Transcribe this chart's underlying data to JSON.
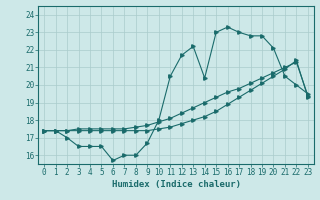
{
  "xlabel": "Humidex (Indice chaleur)",
  "ylabel": "",
  "bg_color": "#cde8e8",
  "line_color": "#1a6b6b",
  "grid_color": "#aacccc",
  "xlim": [
    -0.5,
    23.5
  ],
  "ylim": [
    15.5,
    24.5
  ],
  "yticks": [
    16,
    17,
    18,
    19,
    20,
    21,
    22,
    23,
    24
  ],
  "xticks": [
    0,
    1,
    2,
    3,
    4,
    5,
    6,
    7,
    8,
    9,
    10,
    11,
    12,
    13,
    14,
    15,
    16,
    17,
    18,
    19,
    20,
    21,
    22,
    23
  ],
  "line1_x": [
    0,
    1,
    2,
    3,
    4,
    5,
    6,
    7,
    8,
    9,
    10,
    11,
    12,
    13,
    14,
    15,
    16,
    17,
    18,
    19,
    20,
    21,
    22,
    23
  ],
  "line1_y": [
    17.4,
    17.4,
    17.0,
    16.5,
    16.5,
    16.5,
    15.7,
    16.0,
    16.0,
    16.7,
    18.0,
    20.5,
    21.7,
    22.2,
    20.4,
    23.0,
    23.3,
    23.0,
    22.8,
    22.8,
    22.1,
    20.5,
    20.0,
    19.5
  ],
  "line2_x": [
    0,
    1,
    2,
    3,
    4,
    5,
    6,
    7,
    8,
    9,
    10,
    11,
    12,
    13,
    14,
    15,
    16,
    17,
    18,
    19,
    20,
    21,
    22,
    23
  ],
  "line2_y": [
    17.4,
    17.4,
    17.4,
    17.5,
    17.5,
    17.5,
    17.5,
    17.5,
    17.6,
    17.7,
    17.9,
    18.1,
    18.4,
    18.7,
    19.0,
    19.3,
    19.6,
    19.8,
    20.1,
    20.4,
    20.7,
    21.0,
    21.3,
    19.4
  ],
  "line3_x": [
    0,
    1,
    2,
    3,
    4,
    5,
    6,
    7,
    8,
    9,
    10,
    11,
    12,
    13,
    14,
    15,
    16,
    17,
    18,
    19,
    20,
    21,
    22,
    23
  ],
  "line3_y": [
    17.4,
    17.4,
    17.4,
    17.4,
    17.4,
    17.4,
    17.4,
    17.4,
    17.4,
    17.4,
    17.5,
    17.6,
    17.8,
    18.0,
    18.2,
    18.5,
    18.9,
    19.3,
    19.7,
    20.1,
    20.5,
    20.9,
    21.4,
    19.3
  ],
  "markersize": 2.5,
  "linewidth": 0.8
}
